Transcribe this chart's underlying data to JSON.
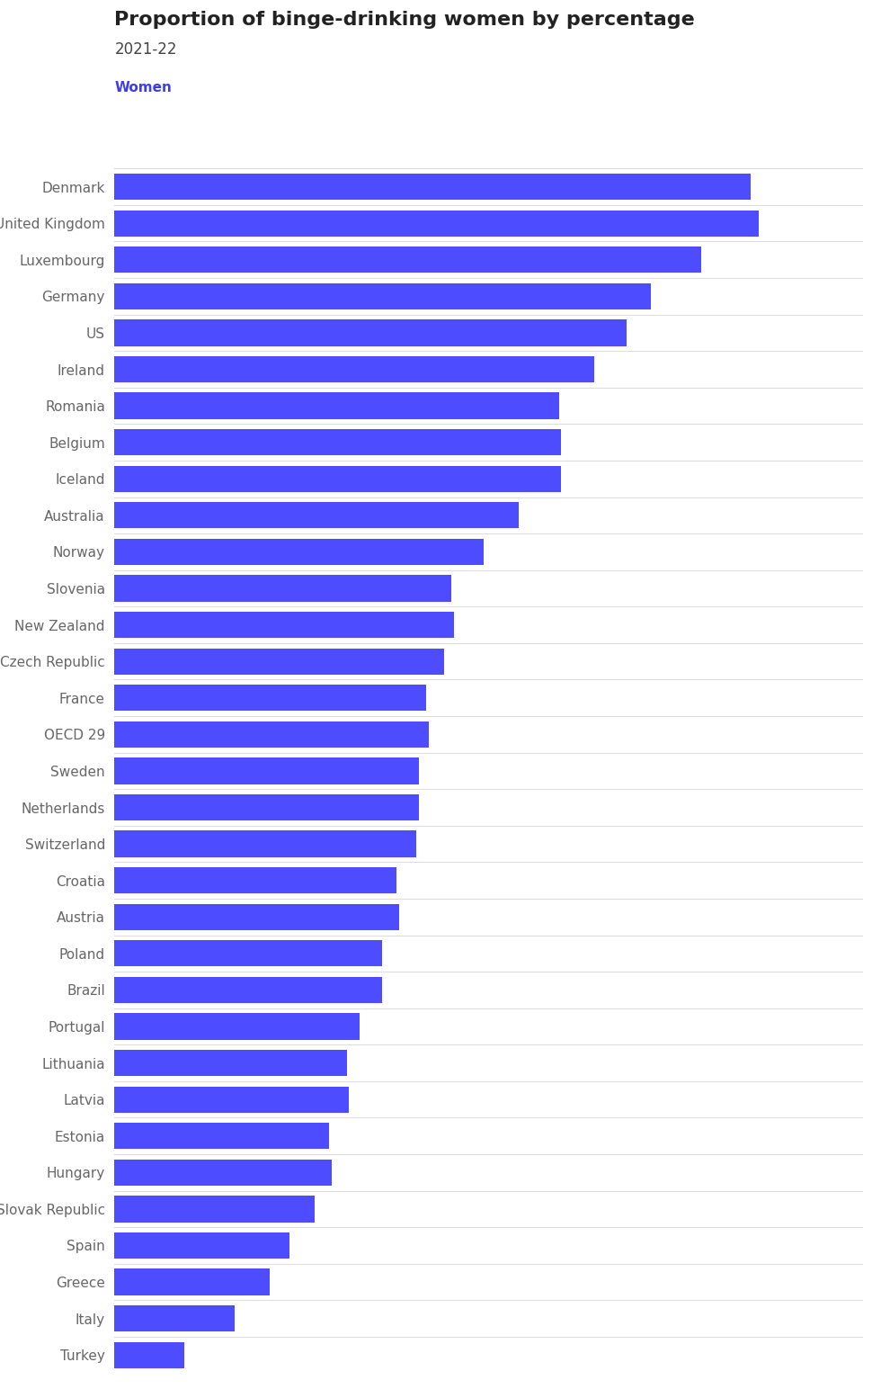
{
  "title": "Proportion of binge-drinking women by percentage",
  "subtitle": "2021-22",
  "legend_label": "Women",
  "bar_color": "#4d4dff",
  "legend_color": "#3d3deb",
  "background_color": "#ffffff",
  "grid_color": "#dddddd",
  "title_color": "#222222",
  "subtitle_color": "#444444",
  "label_color": "#666666",
  "categories": [
    "Denmark",
    "United Kingdom",
    "Luxembourg",
    "Germany",
    "US",
    "Ireland",
    "Romania",
    "Belgium",
    "Iceland",
    "Australia",
    "Norway",
    "Slovenia",
    "New Zealand",
    "Czech Republic",
    "France",
    "OECD 29",
    "Sweden",
    "Netherlands",
    "Switzerland",
    "Croatia",
    "Austria",
    "Poland",
    "Brazil",
    "Portugal",
    "Lithuania",
    "Latvia",
    "Estonia",
    "Hungary",
    "Slovak Republic",
    "Spain",
    "Greece",
    "Italy",
    "Turkey"
  ],
  "values": [
    25.5,
    25.8,
    23.5,
    21.5,
    20.5,
    19.2,
    17.8,
    17.9,
    17.9,
    16.2,
    14.8,
    13.5,
    13.6,
    13.2,
    12.5,
    12.6,
    12.2,
    12.2,
    12.1,
    11.3,
    11.4,
    10.7,
    10.7,
    9.8,
    9.3,
    9.4,
    8.6,
    8.7,
    8.0,
    7.0,
    6.2,
    4.8,
    2.8
  ],
  "xlim": [
    0,
    30
  ],
  "figsize": [
    9.8,
    15.44
  ],
  "bar_height": 0.72,
  "title_fontsize": 16,
  "subtitle_fontsize": 12,
  "label_fontsize": 11,
  "legend_fontsize": 11
}
